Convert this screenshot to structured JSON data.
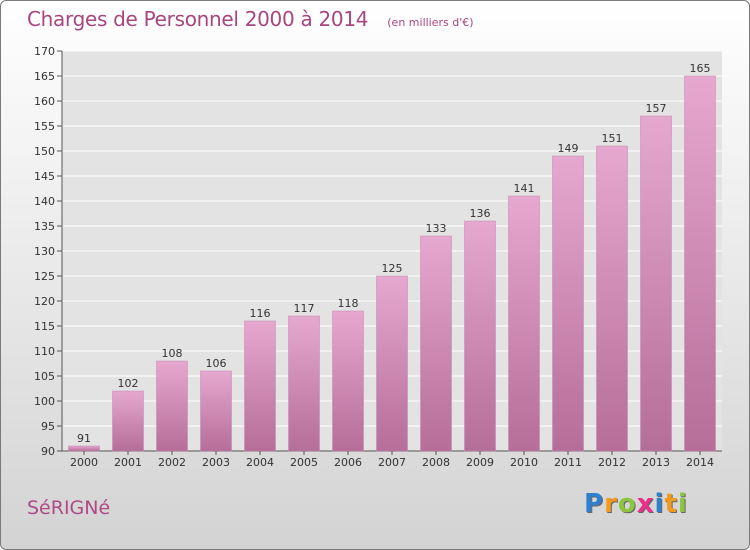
{
  "chart_data": {
    "type": "bar",
    "title": "Charges de Personnel 2000 à 2014",
    "subtitle": "(en milliers d'€)",
    "categories": [
      "2000",
      "2001",
      "2002",
      "2003",
      "2004",
      "2005",
      "2006",
      "2007",
      "2008",
      "2009",
      "2010",
      "2011",
      "2012",
      "2013",
      "2014"
    ],
    "values": [
      91,
      102,
      108,
      106,
      116,
      117,
      118,
      125,
      133,
      136,
      141,
      149,
      151,
      157,
      165
    ],
    "ylim": [
      90,
      170
    ],
    "yticks": [
      90,
      95,
      100,
      105,
      110,
      115,
      120,
      125,
      130,
      135,
      140,
      145,
      150,
      155,
      160,
      165,
      170
    ],
    "grid": true,
    "bar_color": "#d48bb8"
  },
  "commune": "SéRIGNé",
  "logo": {
    "letters": [
      "P",
      "r",
      "o",
      "x",
      "i",
      "t",
      "i"
    ],
    "colors": [
      "#2f7fd0",
      "#f29a1c",
      "#8cc63f",
      "#e8308a",
      "#2f7fd0",
      "#f29a1c",
      "#8cc63f"
    ]
  }
}
